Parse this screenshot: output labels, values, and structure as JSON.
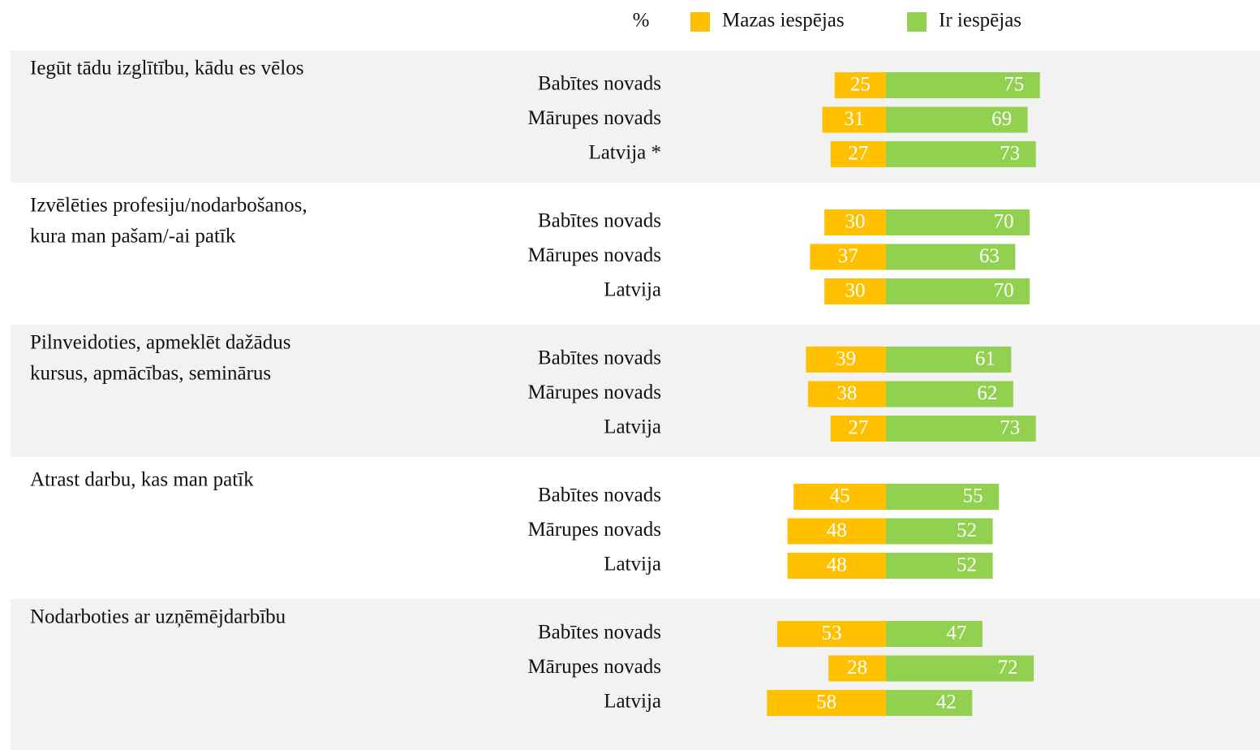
{
  "chart_data": {
    "type": "diverging_bar",
    "unit": "%",
    "series": [
      {
        "name": "Mazas iespējas",
        "color": "#FFC000"
      },
      {
        "name": "Ir iespējas",
        "color": "#92D050"
      }
    ],
    "groups": [
      {
        "title": [
          "Iegūt tādu izglītību, kādu es vēlos"
        ],
        "categories": [
          "Babītes novads",
          "Mārupes novads",
          "Latvija *"
        ],
        "values": [
          [
            25,
            31,
            27
          ],
          [
            75,
            69,
            73
          ]
        ]
      },
      {
        "title": [
          "Izvēlēties profesiju/nodarbošanos,",
          "kura man pašam/-ai patīk"
        ],
        "categories": [
          "Babītes novads",
          "Mārupes novads",
          "Latvija"
        ],
        "values": [
          [
            30,
            37,
            30
          ],
          [
            70,
            63,
            70
          ]
        ]
      },
      {
        "title": [
          "Pilnveidoties, apmeklēt dažādus",
          "kursus, apmācības, seminārus"
        ],
        "categories": [
          "Babītes novads",
          "Mārupes novads",
          "Latvija"
        ],
        "values": [
          [
            39,
            38,
            27
          ],
          [
            61,
            62,
            73
          ]
        ]
      },
      {
        "title": [
          "Atrast darbu, kas man patīk"
        ],
        "categories": [
          "Babītes novads",
          "Mārupes novads",
          "Latvija"
        ],
        "values": [
          [
            45,
            48,
            48
          ],
          [
            55,
            52,
            52
          ]
        ]
      },
      {
        "title": [
          "Nodarboties ar uzņēmējdarbību"
        ],
        "categories": [
          "Babītes novads",
          "Mārupes novads",
          "Latvija"
        ],
        "values": [
          [
            53,
            28,
            58
          ],
          [
            47,
            72,
            42
          ]
        ]
      }
    ]
  }
}
